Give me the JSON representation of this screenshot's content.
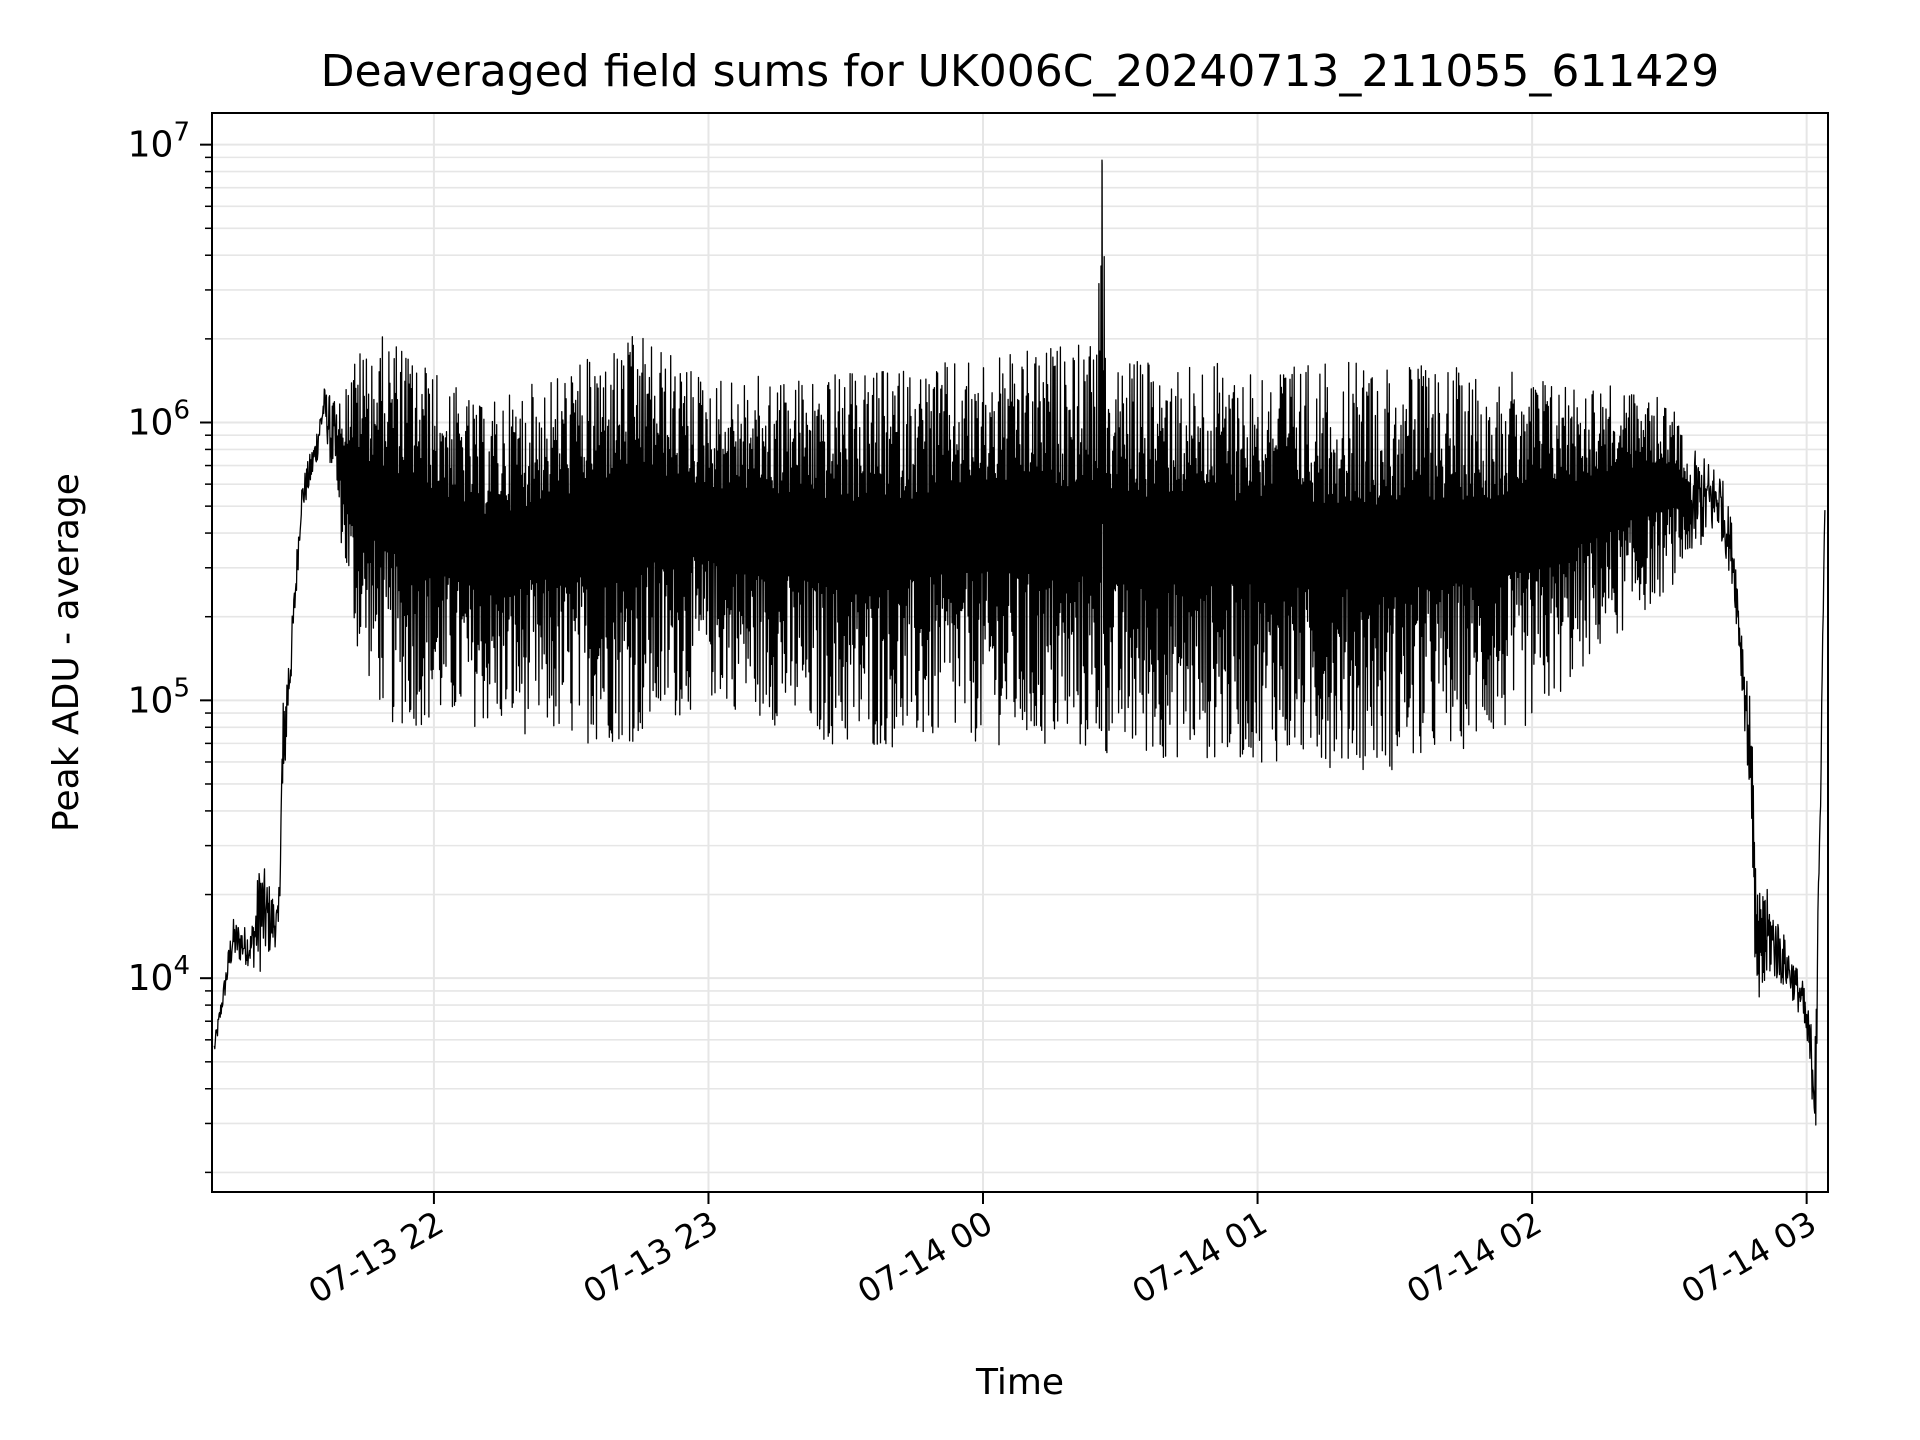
{
  "chart_data": {
    "type": "line",
    "title": "Deaveraged field sums for UK006C_20240713_211055_611429",
    "xlabel": "Time",
    "ylabel": "Peak ADU - average",
    "yscale": "log",
    "ylim": [
      1700,
      13000000
    ],
    "xlim": [
      "2024-07-13 21:11:30",
      "2024-07-14 03:04:40"
    ],
    "grid": true,
    "line_color": "#000000",
    "grid_color": "#e6e6e6",
    "x_ticks": [
      {
        "t": "2024-07-13 22:00",
        "label": "07-13 22"
      },
      {
        "t": "2024-07-13 23:00",
        "label": "07-13 23"
      },
      {
        "t": "2024-07-14 00:00",
        "label": "07-14 00"
      },
      {
        "t": "2024-07-14 01:00",
        "label": "07-14 01"
      },
      {
        "t": "2024-07-14 02:00",
        "label": "07-14 02"
      },
      {
        "t": "2024-07-14 03:00",
        "label": "07-14 03"
      }
    ],
    "y_ticks": [
      {
        "value": 10000,
        "base": "10",
        "exp": "4"
      },
      {
        "value": 100000,
        "base": "10",
        "exp": "5"
      },
      {
        "value": 1000000,
        "base": "10",
        "exp": "6"
      },
      {
        "value": 10000000,
        "base": "10",
        "exp": "7"
      }
    ],
    "envelope": [
      {
        "t": "2024-07-13 21:12",
        "low": 5200,
        "high": 6000
      },
      {
        "t": "2024-07-13 21:14",
        "low": 8000,
        "high": 9500
      },
      {
        "t": "2024-07-13 21:16",
        "low": 11500,
        "high": 16500
      },
      {
        "t": "2024-07-13 21:20",
        "low": 11000,
        "high": 15000
      },
      {
        "t": "2024-07-13 21:22",
        "low": 10500,
        "high": 27500
      },
      {
        "t": "2024-07-13 21:26",
        "low": 13500,
        "high": 18000
      },
      {
        "t": "2024-07-13 21:27",
        "low": 40000,
        "high": 115000
      },
      {
        "t": "2024-07-13 21:29",
        "low": 130000,
        "high": 200000
      },
      {
        "t": "2024-07-13 21:31",
        "low": 450000,
        "high": 600000
      },
      {
        "t": "2024-07-13 21:34",
        "low": 650000,
        "high": 900000
      },
      {
        "t": "2024-07-13 21:36",
        "low": 1000000,
        "high": 1350000
      },
      {
        "t": "2024-07-13 21:39",
        "low": 450000,
        "high": 1150000
      },
      {
        "t": "2024-07-13 21:43",
        "low": 150000,
        "high": 1800000
      },
      {
        "t": "2024-07-13 21:50",
        "low": 80000,
        "high": 2100000
      },
      {
        "t": "2024-07-13 22:10",
        "low": 80000,
        "high": 1150000
      },
      {
        "t": "2024-07-13 22:30",
        "low": 70000,
        "high": 1600000
      },
      {
        "t": "2024-07-13 22:45",
        "low": 70000,
        "high": 2100000
      },
      {
        "t": "2024-07-13 23:00",
        "low": 100000,
        "high": 1450000
      },
      {
        "t": "2024-07-13 23:30",
        "low": 65000,
        "high": 1500000
      },
      {
        "t": "2024-07-14 00:00",
        "low": 70000,
        "high": 1700000
      },
      {
        "t": "2024-07-14 00:25",
        "low": 62000,
        "high": 2000000
      },
      {
        "t": "2024-07-14 00:26",
        "low": 62000,
        "high": 8800000
      },
      {
        "t": "2024-07-14 00:27",
        "low": 62000,
        "high": 1700000
      },
      {
        "t": "2024-07-14 01:00",
        "low": 60000,
        "high": 1650000
      },
      {
        "t": "2024-07-14 01:30",
        "low": 55000,
        "high": 1650000
      },
      {
        "t": "2024-07-14 02:00",
        "low": 80000,
        "high": 1500000
      },
      {
        "t": "2024-07-14 02:15",
        "low": 150000,
        "high": 1400000
      },
      {
        "t": "2024-07-14 02:30",
        "low": 250000,
        "high": 1200000
      },
      {
        "t": "2024-07-14 02:35",
        "low": 330000,
        "high": 800000
      },
      {
        "t": "2024-07-14 02:41",
        "low": 400000,
        "high": 700000
      },
      {
        "t": "2024-07-14 02:44",
        "low": 250000,
        "high": 420000
      },
      {
        "t": "2024-07-14 02:46",
        "low": 100000,
        "high": 180000
      },
      {
        "t": "2024-07-14 02:48",
        "low": 35000,
        "high": 90000
      },
      {
        "t": "2024-07-14 02:49",
        "low": 7000,
        "high": 25000
      },
      {
        "t": "2024-07-14 02:52",
        "low": 10000,
        "high": 20000
      },
      {
        "t": "2024-07-14 02:56",
        "low": 9000,
        "high": 13000
      },
      {
        "t": "2024-07-14 02:59",
        "low": 7000,
        "high": 10000
      },
      {
        "t": "2024-07-14 03:01",
        "low": 4000,
        "high": 7000
      },
      {
        "t": "2024-07-14 03:02",
        "low": 2400,
        "high": 6500
      },
      {
        "t": "2024-07-14 03:04",
        "low": 500000,
        "high": 550000
      }
    ]
  }
}
